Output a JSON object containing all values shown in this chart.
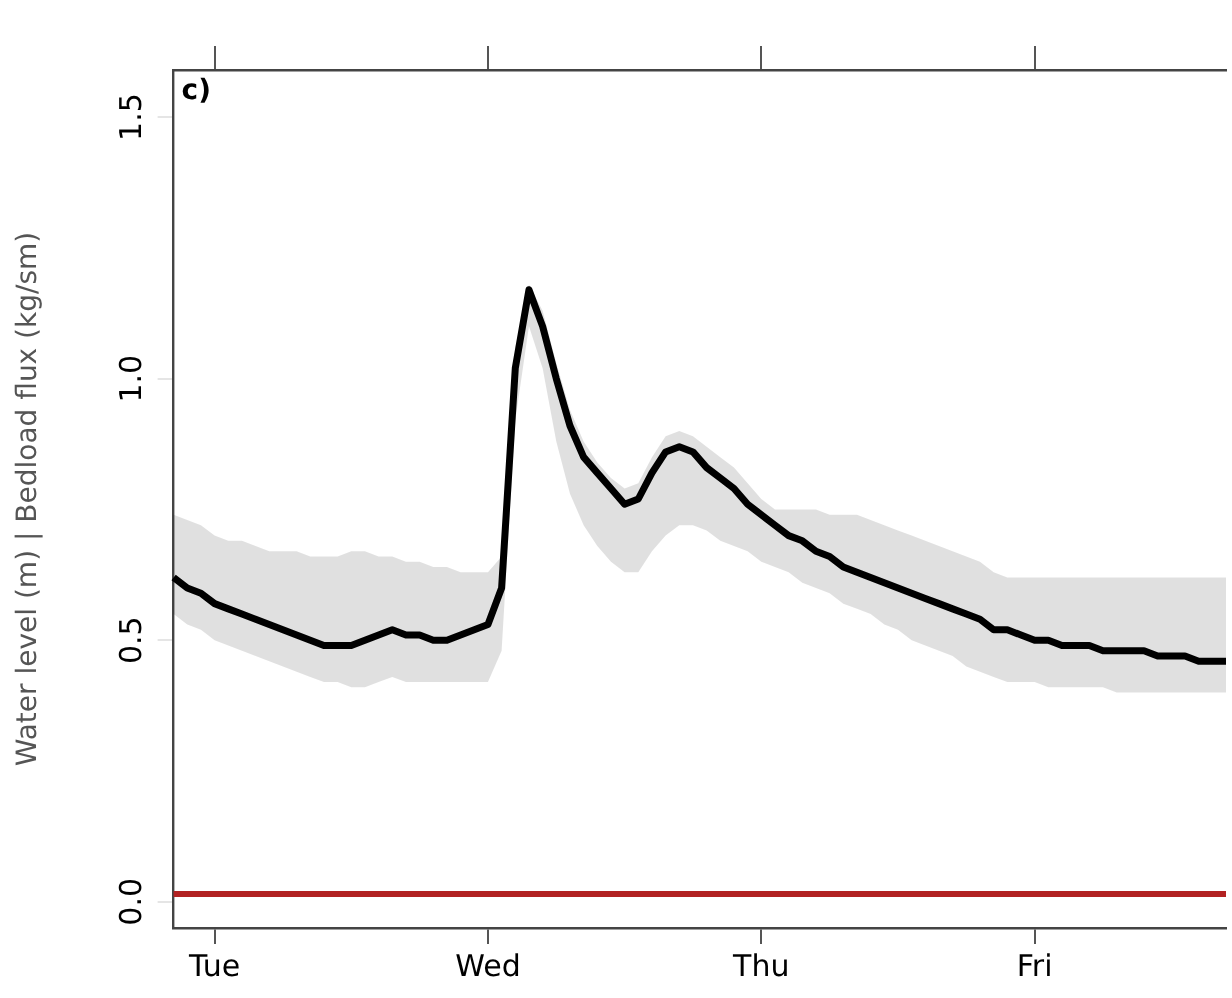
{
  "chart_data": {
    "type": "line",
    "ylabel": "Water level (m) | Bedload flux (kg/sm)",
    "annotations": [
      "c)"
    ],
    "categories": [
      null,
      null,
      null,
      "Tue",
      null,
      null,
      null,
      null,
      null,
      null,
      null,
      null,
      null,
      null,
      null,
      null,
      null,
      null,
      null,
      null,
      null,
      null,
      null,
      "Wed",
      null,
      null,
      null,
      null,
      null,
      null,
      null,
      null,
      null,
      null,
      null,
      null,
      null,
      null,
      null,
      null,
      null,
      null,
      null,
      "Thu",
      null,
      null,
      null,
      null,
      null,
      null,
      null,
      null,
      null,
      null,
      null,
      null,
      null,
      null,
      null,
      null,
      null,
      null,
      null,
      "Fri",
      null,
      null,
      null,
      null,
      null,
      null,
      null,
      null,
      null,
      null,
      null,
      null,
      null,
      null
    ],
    "ylim": [
      -0.05,
      1.59
    ],
    "yticks": [
      {
        "value": 0,
        "label": "0.0"
      },
      0.5,
      {
        "value": 1,
        "label": "1.0"
      },
      1.5
    ],
    "grid": false,
    "legend": false,
    "marker": "none",
    "line_style": "solid",
    "series": [
      {
        "color": "#000000",
        "values": [
          0.62,
          0.6,
          0.59,
          0.57,
          0.56,
          0.55,
          0.54,
          0.53,
          0.52,
          0.51,
          0.5,
          0.49,
          0.49,
          0.49,
          0.5,
          0.51,
          0.52,
          0.51,
          0.51,
          0.5,
          0.5,
          0.51,
          0.52,
          0.53,
          0.6,
          1.02,
          1.17,
          1.1,
          1.0,
          0.91,
          0.85,
          0.82,
          0.79,
          0.76,
          0.77,
          0.82,
          0.86,
          0.87,
          0.86,
          0.83,
          0.81,
          0.79,
          0.76,
          0.74,
          0.72,
          0.7,
          0.69,
          0.67,
          0.66,
          0.64,
          0.63,
          0.62,
          0.61,
          0.6,
          0.59,
          0.58,
          0.57,
          0.56,
          0.55,
          0.54,
          0.52,
          0.52,
          0.51,
          0.5,
          0.5,
          0.49,
          0.49,
          0.49,
          0.48,
          0.48,
          0.48,
          0.48,
          0.47,
          0.47,
          0.47,
          0.46,
          0.46,
          0.46
        ],
        "lower": [
          0.55,
          0.53,
          0.52,
          0.5,
          0.49,
          0.48,
          0.47,
          0.46,
          0.45,
          0.44,
          0.43,
          0.42,
          0.42,
          0.41,
          0.41,
          0.42,
          0.43,
          0.42,
          0.42,
          0.42,
          0.42,
          0.42,
          0.42,
          0.42,
          0.48,
          0.92,
          1.1,
          1.02,
          0.88,
          0.78,
          0.72,
          0.68,
          0.65,
          0.63,
          0.63,
          0.67,
          0.7,
          0.72,
          0.72,
          0.71,
          0.69,
          0.68,
          0.67,
          0.65,
          0.64,
          0.63,
          0.61,
          0.6,
          0.59,
          0.57,
          0.56,
          0.55,
          0.53,
          0.52,
          0.5,
          0.49,
          0.48,
          0.47,
          0.45,
          0.44,
          0.43,
          0.42,
          0.42,
          0.42,
          0.41,
          0.41,
          0.41,
          0.41,
          0.41,
          0.4,
          0.4,
          0.4,
          0.4,
          0.4,
          0.4,
          0.4,
          0.4,
          0.4
        ],
        "upper": [
          0.74,
          0.73,
          0.72,
          0.7,
          0.69,
          0.69,
          0.68,
          0.67,
          0.67,
          0.67,
          0.66,
          0.66,
          0.66,
          0.67,
          0.67,
          0.66,
          0.66,
          0.65,
          0.65,
          0.64,
          0.64,
          0.63,
          0.63,
          0.63,
          0.66,
          1.06,
          1.18,
          1.13,
          1.03,
          0.94,
          0.88,
          0.84,
          0.81,
          0.79,
          0.8,
          0.85,
          0.89,
          0.9,
          0.89,
          0.87,
          0.85,
          0.83,
          0.8,
          0.77,
          0.75,
          0.75,
          0.75,
          0.75,
          0.74,
          0.74,
          0.74,
          0.73,
          0.72,
          0.71,
          0.7,
          0.69,
          0.68,
          0.67,
          0.66,
          0.65,
          0.63,
          0.62,
          0.62,
          0.62,
          0.62,
          0.62,
          0.62,
          0.62,
          0.62,
          0.62,
          0.62,
          0.62,
          0.62,
          0.62,
          0.62,
          0.62,
          0.62,
          0.62
        ]
      },
      {
        "color": "#b22222",
        "values": [
          0.015,
          0.015,
          0.015,
          0.015,
          0.015,
          0.015,
          0.015,
          0.015,
          0.015,
          0.015,
          0.015,
          0.015,
          0.015,
          0.015,
          0.015,
          0.015,
          0.015,
          0.015,
          0.015,
          0.015,
          0.015,
          0.015,
          0.015,
          0.015,
          0.015,
          0.015,
          0.015,
          0.015,
          0.015,
          0.015,
          0.015,
          0.015,
          0.015,
          0.015,
          0.015,
          0.015,
          0.015,
          0.015,
          0.015,
          0.015,
          0.015,
          0.015,
          0.015,
          0.015,
          0.015,
          0.015,
          0.015,
          0.015,
          0.015,
          0.015,
          0.015,
          0.015,
          0.015,
          0.015,
          0.015,
          0.015,
          0.015,
          0.015,
          0.015,
          0.015,
          0.015,
          0.015,
          0.015,
          0.015,
          0.015,
          0.015,
          0.015,
          0.015,
          0.015,
          0.015,
          0.015,
          0.015,
          0.015,
          0.015,
          0.015,
          0.015,
          0.015,
          0.015
        ]
      }
    ]
  }
}
